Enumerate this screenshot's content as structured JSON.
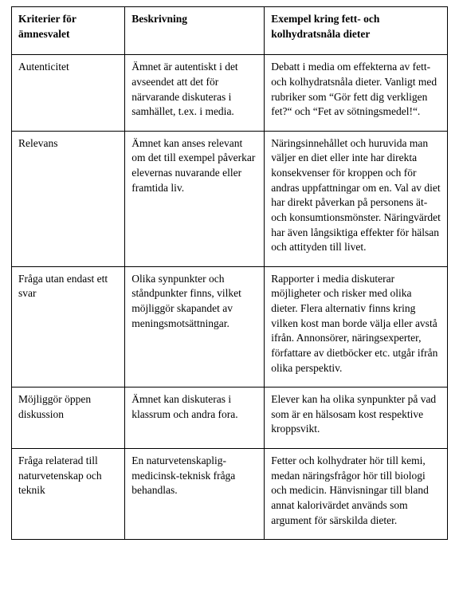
{
  "table": {
    "columns": [
      "Kriterier för ämnesvalet",
      "Beskrivning",
      "Exempel kring fett- och kolhydratsnåla dieter"
    ],
    "rows": [
      [
        "Autenticitet",
        "Ämnet är autentiskt i det avseendet att det för närvarande diskuteras i samhället, t.ex. i media.",
        "Debatt i media om effekterna av fett- och kolhydratsnåla dieter. Vanligt med rubriker som “Gör fett dig verkligen fet?“ och “Fet av sötningsmedel!“."
      ],
      [
        "Relevans",
        "Ämnet kan anses relevant om det till exempel påverkar elevernas nuvarande eller framtida liv.",
        "Näringsinnehållet och huruvida man väljer en diet eller inte har direkta konsekvenser för kroppen och för andras uppfattningar om en. Val av diet har direkt påverkan på personens ät- och konsumtionsmönster. Näringvärdet har även långsiktiga effekter för hälsan och attityden till livet."
      ],
      [
        "Fråga utan endast ett svar",
        "Olika synpunkter och ståndpunkter finns, vilket möjliggör skapandet av meningsmotsättningar.",
        "Rapporter i media diskuterar möjligheter och risker med olika dieter. Flera alternativ finns kring vilken kost man borde välja eller avstå ifrån. Annonsörer, näringsexperter, författare av dietböcker etc. utgår ifrån olika perspektiv."
      ],
      [
        "Möjliggör öppen diskussion",
        "Ämnet kan diskuteras i klassrum och andra fora.",
        "Elever kan ha olika synpunkter på vad som är en hälsosam kost respektive kroppsvikt."
      ],
      [
        "Fråga relaterad till naturvetenskap och teknik",
        "En naturvetenskaplig-medicinsk-teknisk fråga behandlas.",
        "Fetter och kolhydrater hör till kemi, medan näringsfrågor hör till biologi och medicin. Hänvisningar till bland annat kalorivärdet används som argument för särskilda dieter."
      ]
    ],
    "style": {
      "font_family": "Garamond, Times New Roman, serif",
      "font_size_pt": 10,
      "header_weight": "bold",
      "border_color": "#000000",
      "background_color": "#ffffff",
      "text_color": "#000000",
      "col_widths_pct": [
        26,
        32,
        42
      ]
    }
  }
}
